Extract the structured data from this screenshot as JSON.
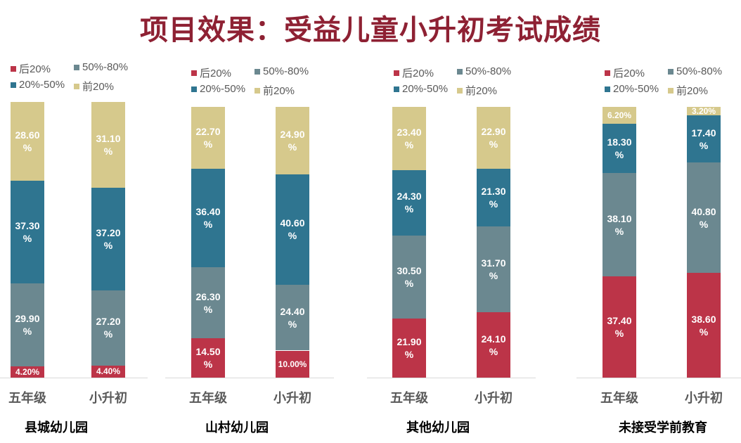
{
  "title": "项目效果：受益儿童小升初考试成绩",
  "chart_data": [
    {
      "type": "bar",
      "stacked": true,
      "title": "县城幼儿园",
      "categories": [
        "五年级",
        "小升初"
      ],
      "legend": [
        "后20%",
        "50%-80%",
        "20%-50%",
        "前20%"
      ],
      "series": [
        {
          "name": "后20%",
          "values": [
            4.2,
            4.4
          ],
          "labels": [
            "4.20%",
            "4.40%"
          ]
        },
        {
          "name": "50%-80%",
          "values": [
            29.9,
            27.2
          ],
          "labels": [
            "29.90%",
            "27.20%"
          ]
        },
        {
          "name": "20%-50%",
          "values": [
            37.3,
            37.2
          ],
          "labels": [
            "37.30%",
            "37.20%"
          ]
        },
        {
          "name": "前20%",
          "values": [
            28.6,
            31.1
          ],
          "labels": [
            "28.60%",
            "31.10%"
          ]
        }
      ]
    },
    {
      "type": "bar",
      "stacked": true,
      "title": "山村幼儿园",
      "categories": [
        "五年级",
        "小升初"
      ],
      "legend": [
        "后20%",
        "50%-80%",
        "20%-50%",
        "前20%"
      ],
      "series": [
        {
          "name": "后20%",
          "values": [
            14.5,
            10.0
          ],
          "labels": [
            "14.50%",
            "10.00%"
          ]
        },
        {
          "name": "50%-80%",
          "values": [
            26.3,
            24.4
          ],
          "labels": [
            "26.30%",
            "24.40%"
          ]
        },
        {
          "name": "20%-50%",
          "values": [
            36.4,
            40.6
          ],
          "labels": [
            "36.40%",
            "40.60%"
          ]
        },
        {
          "name": "前20%",
          "values": [
            22.7,
            24.9
          ],
          "labels": [
            "22.70%",
            "24.90%"
          ]
        }
      ]
    },
    {
      "type": "bar",
      "stacked": true,
      "title": "其他幼儿园",
      "categories": [
        "五年级",
        "小升初"
      ],
      "legend": [
        "后20%",
        "50%-80%",
        "20%-50%",
        "前20%"
      ],
      "series": [
        {
          "name": "后20%",
          "values": [
            21.9,
            24.1
          ],
          "labels": [
            "21.90%",
            "24.10%"
          ]
        },
        {
          "name": "50%-80%",
          "values": [
            30.5,
            31.7
          ],
          "labels": [
            "30.50%",
            "31.70%"
          ]
        },
        {
          "name": "20%-50%",
          "values": [
            24.3,
            21.3
          ],
          "labels": [
            "24.30%",
            "21.30%"
          ]
        },
        {
          "name": "前20%",
          "values": [
            23.4,
            22.9
          ],
          "labels": [
            "23.40%",
            "22.90%"
          ]
        }
      ]
    },
    {
      "type": "bar",
      "stacked": true,
      "title": "未接受学前教育",
      "categories": [
        "五年级",
        "小升初"
      ],
      "legend": [
        "后20%",
        "50%-80%",
        "20%-50%",
        "前20%"
      ],
      "series": [
        {
          "name": "后20%",
          "values": [
            37.4,
            38.6
          ],
          "labels": [
            "37.40%",
            "38.60%"
          ]
        },
        {
          "name": "50%-80%",
          "values": [
            38.1,
            40.8
          ],
          "labels": [
            "38.10%",
            "40.80%"
          ]
        },
        {
          "name": "20%-50%",
          "values": [
            18.3,
            17.4
          ],
          "labels": [
            "18.30%",
            "17.40%"
          ]
        },
        {
          "name": "前20%",
          "values": [
            6.2,
            3.2
          ],
          "labels": [
            "6.20%",
            "3.20%"
          ]
        }
      ]
    }
  ],
  "colors": {
    "后20%": "#BC3448",
    "50%-80%": "#6B8890",
    "20%-50%": "#2F7590",
    "前20%": "#D6C98C",
    "title": "#8E2133"
  }
}
